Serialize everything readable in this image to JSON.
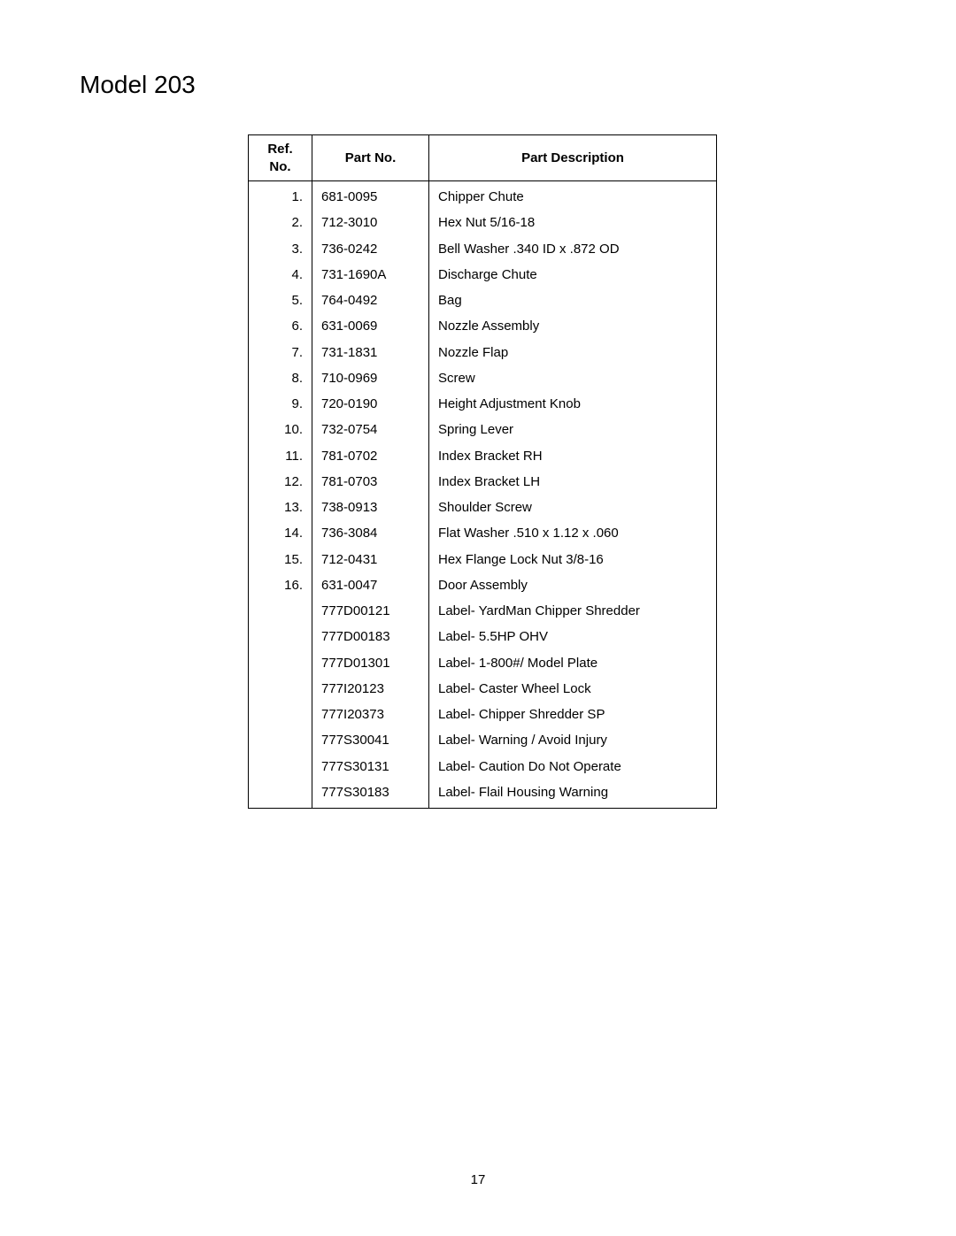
{
  "title": "Model 203",
  "page_number": "17",
  "table": {
    "header": {
      "ref": "Ref. No.",
      "part": "Part No.",
      "desc": "Part Description"
    },
    "rows": [
      {
        "ref": "1.",
        "part": "681-0095",
        "desc": "Chipper Chute"
      },
      {
        "ref": "2.",
        "part": "712-3010",
        "desc": "Hex Nut 5/16-18"
      },
      {
        "ref": "3.",
        "part": "736-0242",
        "desc": "Bell Washer .340 ID x .872 OD"
      },
      {
        "ref": "4.",
        "part": "731-1690A",
        "desc": "Discharge Chute"
      },
      {
        "ref": "5.",
        "part": "764-0492",
        "desc": "Bag"
      },
      {
        "ref": "6.",
        "part": "631-0069",
        "desc": "Nozzle Assembly"
      },
      {
        "ref": "7.",
        "part": "731-1831",
        "desc": "Nozzle Flap"
      },
      {
        "ref": "8.",
        "part": "710-0969",
        "desc": "Screw"
      },
      {
        "ref": "9.",
        "part": "720-0190",
        "desc": "Height Adjustment Knob"
      },
      {
        "ref": "10.",
        "part": "732-0754",
        "desc": "Spring Lever"
      },
      {
        "ref": "11.",
        "part": "781-0702",
        "desc": "Index Bracket RH"
      },
      {
        "ref": "12.",
        "part": "781-0703",
        "desc": "Index Bracket LH"
      },
      {
        "ref": "13.",
        "part": "738-0913",
        "desc": "Shoulder Screw"
      },
      {
        "ref": "14.",
        "part": "736-3084",
        "desc": "Flat Washer .510 x 1.12 x .060"
      },
      {
        "ref": "15.",
        "part": "712-0431",
        "desc": "Hex Flange Lock Nut 3/8-16"
      },
      {
        "ref": "16.",
        "part": "631-0047",
        "desc": "Door Assembly"
      },
      {
        "ref": "",
        "part": "777D00121",
        "desc": "Label- YardMan Chipper Shredder"
      },
      {
        "ref": "",
        "part": "777D00183",
        "desc": "Label- 5.5HP OHV"
      },
      {
        "ref": "",
        "part": "777D01301",
        "desc": "Label- 1-800#/ Model Plate"
      },
      {
        "ref": "",
        "part": "777I20123",
        "desc": "Label- Caster Wheel Lock"
      },
      {
        "ref": "",
        "part": "777I20373",
        "desc": "Label- Chipper Shredder SP"
      },
      {
        "ref": "",
        "part": "777S30041",
        "desc": "Label- Warning / Avoid Injury"
      },
      {
        "ref": "",
        "part": "777S30131",
        "desc": "Label- Caution Do Not Operate"
      },
      {
        "ref": "",
        "part": "777S30183",
        "desc": "Label- Flail Housing Warning"
      }
    ]
  }
}
